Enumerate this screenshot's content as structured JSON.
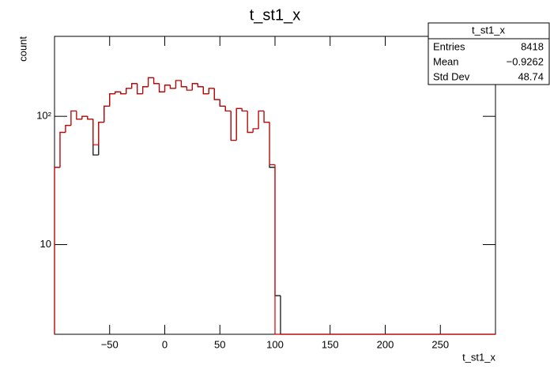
{
  "chart_data": {
    "type": "histogram",
    "title": "t_st1_x",
    "x_label": "t_st1_x",
    "y_label": "count",
    "log_y": true,
    "bins": [
      -100,
      -95,
      -90,
      -85,
      -80,
      -75,
      -70,
      -65,
      -60,
      -55,
      -50,
      -45,
      -40,
      -35,
      -30,
      -25,
      -20,
      -15,
      -10,
      -5,
      0,
      5,
      10,
      15,
      20,
      25,
      30,
      35,
      40,
      45,
      50,
      55,
      60,
      65,
      70,
      75,
      80,
      85,
      90,
      95,
      100,
      105,
      300
    ],
    "series": [
      {
        "color": "#000000",
        "values": [
          40,
          75,
          85,
          110,
          95,
          100,
          95,
          50,
          90,
          120,
          150,
          155,
          150,
          165,
          180,
          150,
          170,
          200,
          180,
          155,
          175,
          165,
          190,
          170,
          160,
          180,
          170,
          150,
          165,
          135,
          120,
          110,
          65,
          115,
          110,
          75,
          80,
          110,
          90,
          40,
          4,
          0
        ]
      },
      {
        "color": "#d00000",
        "values": [
          40,
          75,
          85,
          110,
          95,
          100,
          95,
          60,
          90,
          120,
          150,
          155,
          150,
          165,
          180,
          150,
          170,
          200,
          180,
          155,
          175,
          165,
          190,
          170,
          160,
          180,
          170,
          150,
          165,
          135,
          120,
          110,
          65,
          115,
          110,
          75,
          80,
          110,
          90,
          42,
          0,
          0
        ]
      }
    ],
    "xlim": [
      -100,
      300
    ],
    "ylim": [
      2,
      420
    ],
    "xticks": [
      {
        "value": -50,
        "label": "−50"
      },
      0,
      50,
      100,
      150,
      200,
      250
    ],
    "yticks": [
      10,
      {
        "value": 100,
        "label": "10²"
      }
    ],
    "stats": {
      "title": "t_st1_x",
      "rows": [
        [
          "Entries",
          "8418"
        ],
        [
          "Mean",
          "−0.9262"
        ],
        [
          "Std Dev",
          "48.74"
        ]
      ]
    }
  }
}
